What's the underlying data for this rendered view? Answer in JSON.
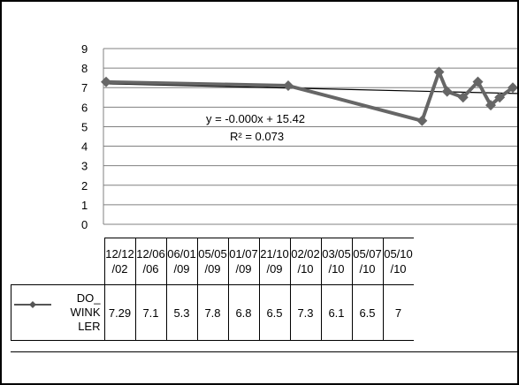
{
  "chart_data": {
    "type": "line",
    "categories": [
      "12/12/02",
      "12/06/06",
      "06/01/09",
      "05/05/09",
      "01/07/09",
      "21/10/09",
      "02/02/10",
      "03/05/10",
      "05/07/10",
      "05/10/10"
    ],
    "category_labels": [
      "12/12\n/02",
      "12/06\n/06",
      "06/01\n/09",
      "05/05\n/09",
      "01/07\n/09",
      "21/10\n/09",
      "02/02\n/10",
      "03/05\n/10",
      "05/07\n/10",
      "05/10\n/10"
    ],
    "series": [
      {
        "name": "DO_WINKLER",
        "name_display": "DO_\nWINK\nLER",
        "values": [
          7.29,
          7.1,
          5.3,
          7.8,
          6.8,
          6.5,
          7.3,
          6.1,
          6.5,
          7
        ]
      }
    ],
    "x_axis": "dates plotted on a time scale",
    "y_ticks": [
      "0",
      "1",
      "2",
      "3",
      "4",
      "5",
      "6",
      "7",
      "8",
      "9"
    ],
    "ylim": [
      0,
      9
    ],
    "grid": true,
    "legend": "data table below chart",
    "trendline": {
      "type": "linear",
      "equation": "y = -0.000x + 15.42",
      "r_squared": "R² = 0.073",
      "start_value": 7.2,
      "end_value": 6.7
    },
    "colors": {
      "series": "#666666",
      "trendline": "#000000",
      "grid": "#808080"
    }
  }
}
